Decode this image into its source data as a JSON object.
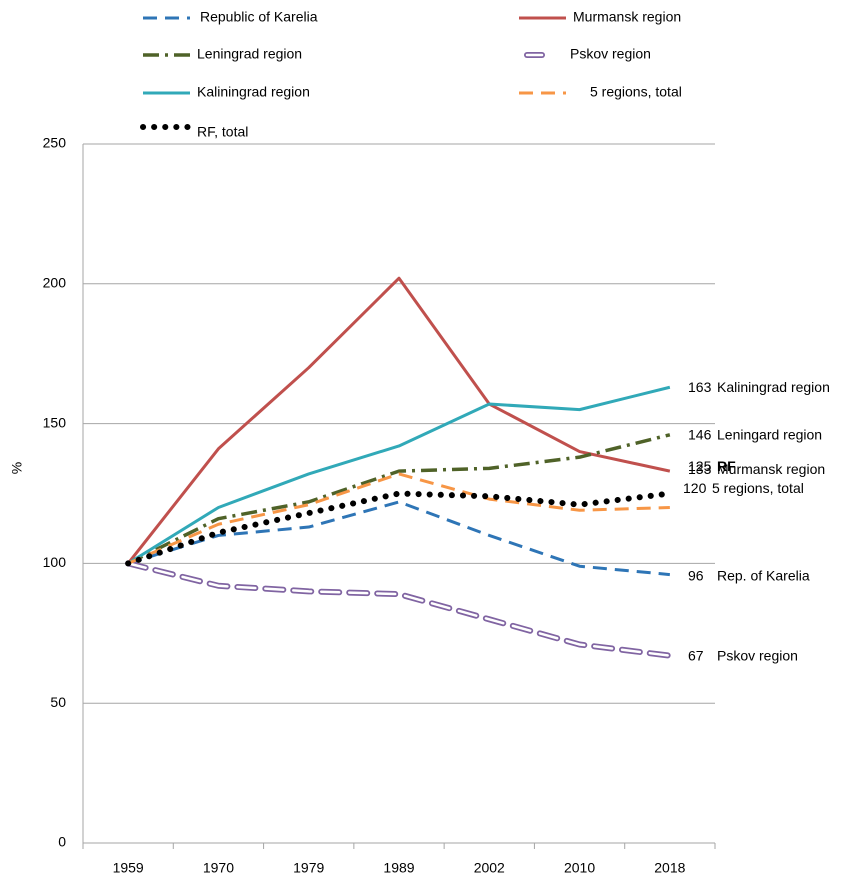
{
  "chart_data": {
    "type": "line",
    "y_label": "%",
    "categories": [
      "1959",
      "1970",
      "1979",
      "1989",
      "2002",
      "2010",
      "2018"
    ],
    "ylim": [
      0,
      250
    ],
    "yticks": [
      0,
      50,
      100,
      150,
      200,
      250
    ],
    "grid": true,
    "series": [
      {
        "name": "Republic of Karelia",
        "color": "#2e75b6",
        "style": "dashed",
        "values": [
          100,
          110,
          113,
          122,
          110,
          99,
          96
        ],
        "end_label": "Rep. of Karelia"
      },
      {
        "name": "Murmansk region",
        "color": "#c0504d",
        "style": "solid",
        "values": [
          100,
          141,
          170,
          202,
          157,
          140,
          133
        ],
        "end_label": "Murmansk region"
      },
      {
        "name": "Leningrad region",
        "color": "#4f6228",
        "style": "dashdot",
        "values": [
          100,
          116,
          122,
          133,
          134,
          138,
          146
        ],
        "end_label": "Leningard region"
      },
      {
        "name": "Pskov region",
        "color": "#8064a2",
        "style": "hollow",
        "values": [
          100,
          92,
          90,
          89,
          80,
          71,
          67
        ],
        "end_label": "Pskov region"
      },
      {
        "name": "Kaliningrad region",
        "color": "#31a9b8",
        "style": "solid",
        "values": [
          100,
          120,
          132,
          142,
          157,
          155,
          163
        ],
        "end_label": "Kaliningrad region"
      },
      {
        "name": "5 regions, total",
        "color": "#f79646",
        "style": "dashed",
        "values": [
          100,
          114,
          121,
          132,
          123,
          119,
          120
        ],
        "end_label": "5 regions, total"
      },
      {
        "name": "RF, total",
        "color": "#000000",
        "style": "dotted",
        "values": [
          100,
          111,
          118,
          125,
          124,
          121,
          125
        ],
        "end_label": "RF"
      }
    ]
  }
}
